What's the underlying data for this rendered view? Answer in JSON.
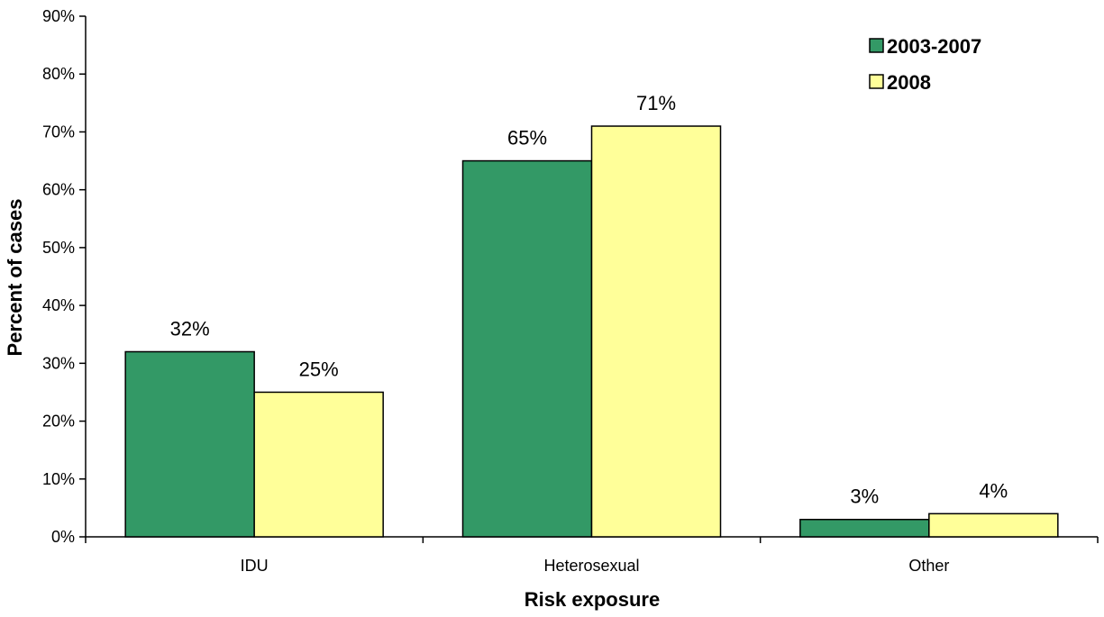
{
  "chart_data": {
    "type": "bar",
    "categories": [
      "IDU",
      "Heterosexual",
      "Other"
    ],
    "series": [
      {
        "name": "2003-2007",
        "values": [
          32,
          65,
          3
        ],
        "labels": [
          "32%",
          "65%",
          "3%"
        ],
        "color": "#339966"
      },
      {
        "name": "2008",
        "values": [
          25,
          71,
          4
        ],
        "labels": [
          "25%",
          "71%",
          "4%"
        ],
        "color": "#FFFF99"
      }
    ],
    "xlabel": "Risk exposure",
    "ylabel": "Percent of cases",
    "ylim": [
      0,
      90
    ],
    "yticks": [
      0,
      10,
      20,
      30,
      40,
      50,
      60,
      70,
      80,
      90
    ],
    "ytick_labels": [
      "0%",
      "10%",
      "20%",
      "30%",
      "40%",
      "50%",
      "60%",
      "70%",
      "80%",
      "90%"
    ],
    "grid": false,
    "legend_position": "top-right"
  }
}
